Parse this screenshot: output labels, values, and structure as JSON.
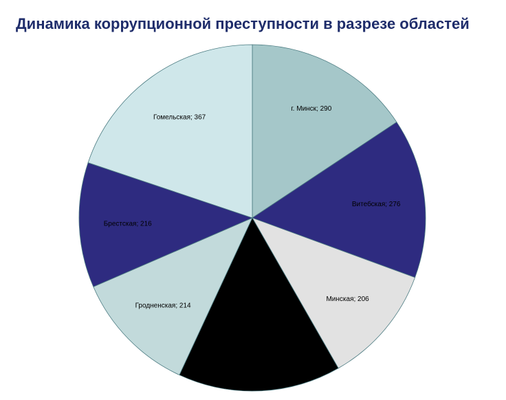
{
  "title": "Динамика коррупционной преступности в разрезе областей",
  "colors": {
    "title": "#1f2d6b"
  },
  "chart_data": {
    "type": "pie",
    "title": "Динамика коррупционной преступности в разрезе областей",
    "start_angle_deg": 0,
    "direction": "clockwise",
    "legend": "none",
    "slices": [
      {
        "label": "г. Минск; 290",
        "value": 290,
        "color": "#a5c7c9"
      },
      {
        "label": "Витебская; 276",
        "value": 276,
        "color": "#2e2b80"
      },
      {
        "label": "Минская; 206",
        "value": 206,
        "color": "#e2e2e2"
      },
      {
        "label": "",
        "value": 281,
        "color": "#000000"
      },
      {
        "label": "Гродненская; 214",
        "value": 214,
        "color": "#c2dadb"
      },
      {
        "label": "Брестская; 216",
        "value": 216,
        "color": "#2e2b80"
      },
      {
        "label": "Гомельская; 367",
        "value": 367,
        "color": "#cfe7ea"
      }
    ]
  }
}
